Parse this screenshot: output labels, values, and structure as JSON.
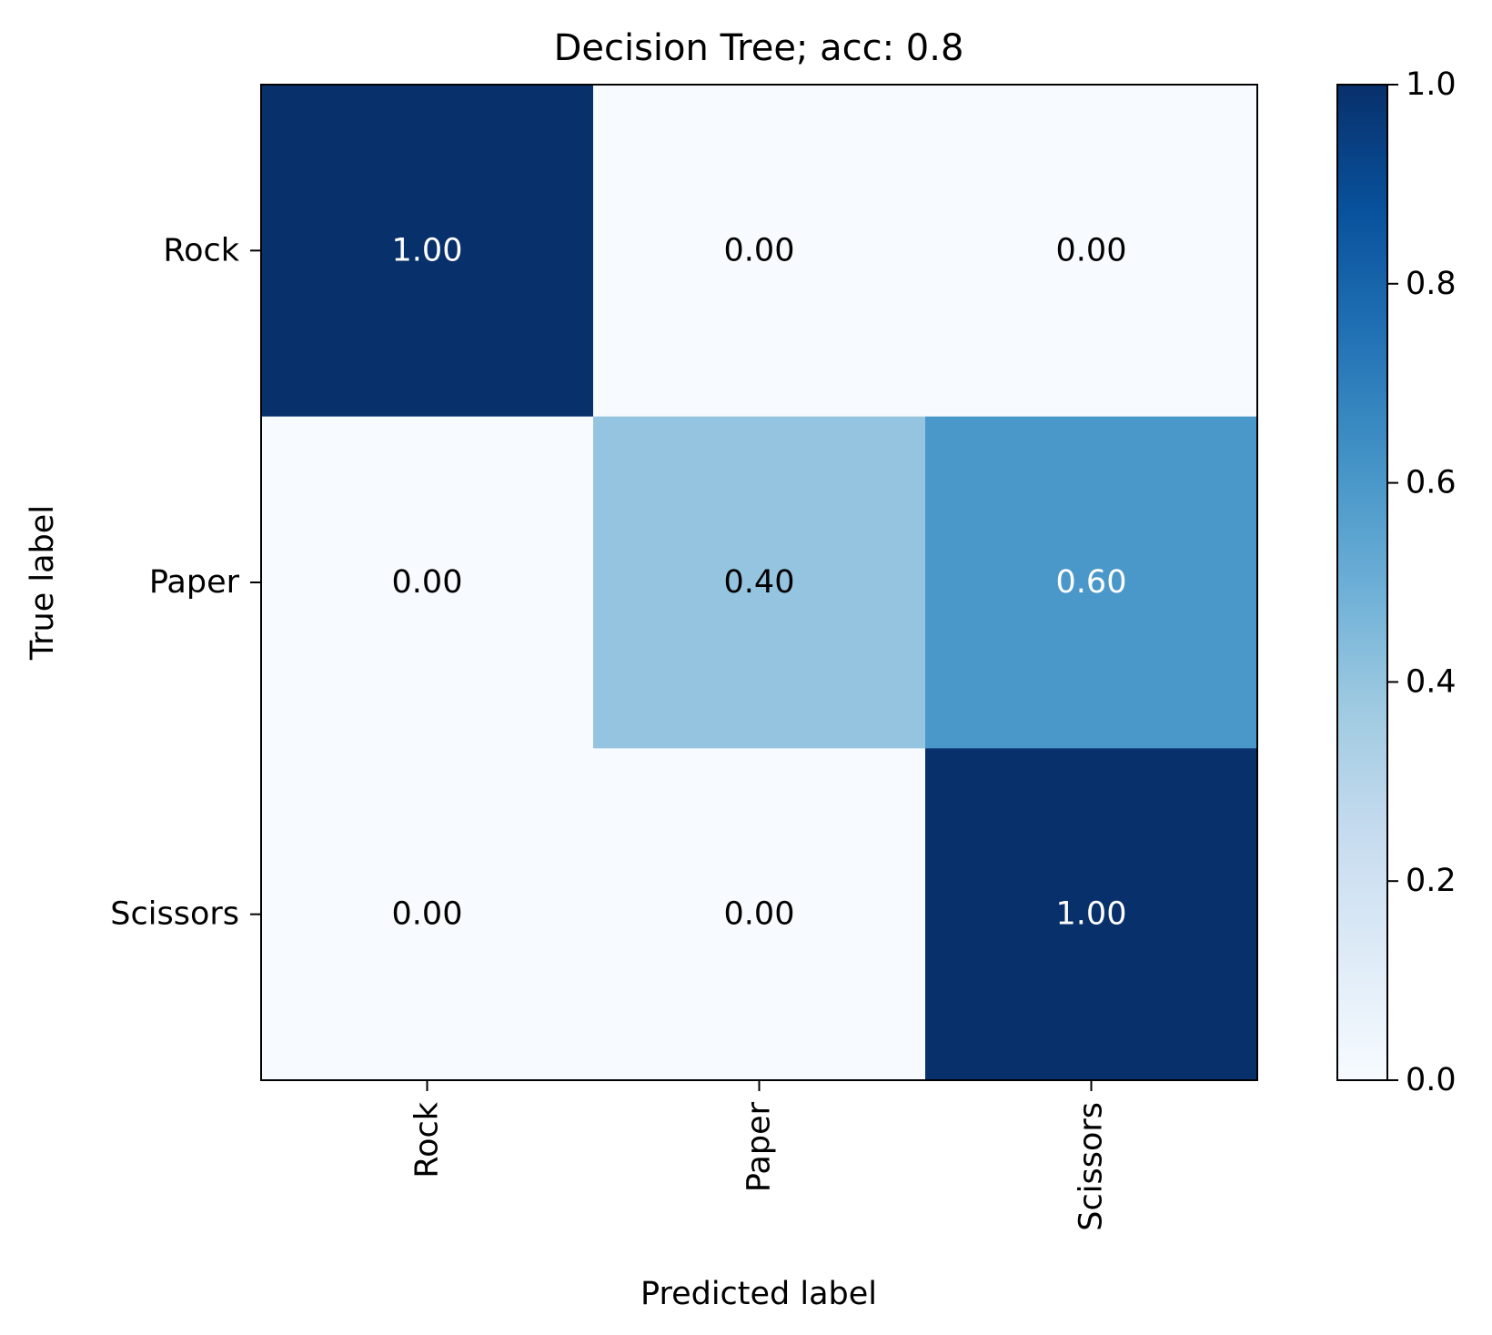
{
  "chart_data": {
    "type": "heatmap",
    "title": "Decision Tree; acc: 0.8",
    "xlabel": "Predicted label",
    "ylabel": "True label",
    "x_categories": [
      "Rock",
      "Paper",
      "Scissors"
    ],
    "y_categories": [
      "Rock",
      "Paper",
      "Scissors"
    ],
    "values": [
      [
        1.0,
        0.0,
        0.0
      ],
      [
        0.0,
        0.4,
        0.6
      ],
      [
        0.0,
        0.0,
        1.0
      ]
    ],
    "cell_labels": [
      [
        "1.00",
        "0.00",
        "0.00"
      ],
      [
        "0.00",
        "0.40",
        "0.60"
      ],
      [
        "0.00",
        "0.00",
        "1.00"
      ]
    ],
    "colormap": "Blues",
    "colorbar": {
      "range": [
        0.0,
        1.0
      ],
      "ticks": [
        "0.0",
        "0.2",
        "0.4",
        "0.6",
        "0.8",
        "1.0"
      ]
    },
    "colors": {
      "low": "#f7fbff",
      "high": "#08306b",
      "text_dark": "#000000",
      "text_light": "#ffffff"
    }
  }
}
